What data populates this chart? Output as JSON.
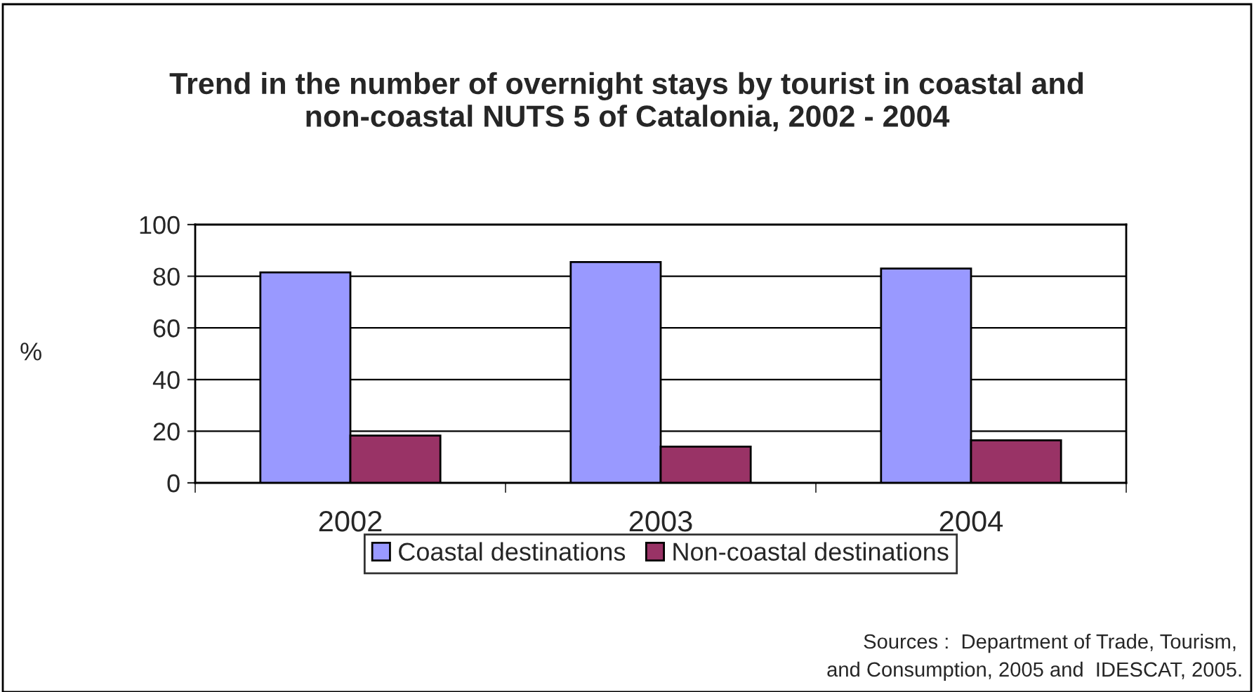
{
  "chart_data": {
    "type": "bar",
    "title": "Trend in the number of overnight stays by tourist in coastal and non-coastal NUTS 5 of Catalonia, 2002 - 2004",
    "ylabel": "%",
    "categories": [
      "2002",
      "2003",
      "2004"
    ],
    "series": [
      {
        "name": "Coastal destinations",
        "color": "#9999ff",
        "values": [
          81.5,
          85.5,
          83.0
        ]
      },
      {
        "name": "Non-coastal destinations",
        "color": "#993366",
        "values": [
          18.3,
          14.0,
          16.5
        ]
      }
    ],
    "ylim": [
      0,
      100
    ],
    "yticks": [
      0,
      20,
      40,
      60,
      80,
      100
    ],
    "grid": "y",
    "legend": "bottom",
    "annotations": [
      "Sources :  Department of Trade, Tourism, \nand Consumption, 2005 and  IDESCAT, 2005."
    ]
  }
}
